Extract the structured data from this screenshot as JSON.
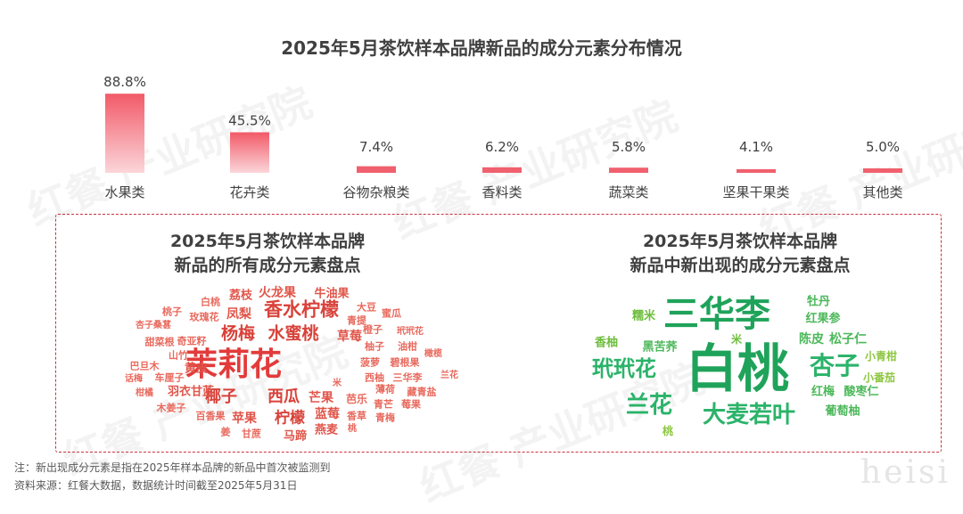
{
  "watermark": "红餐 产业研究院",
  "signature": "heisi",
  "title": "2025年5月茶饮样本品牌新品的成分元素分布情况",
  "chart_data": [
    {
      "type": "bar",
      "title": "2025年5月茶饮样本品牌新品的成分元素分布情况",
      "categories": [
        "水果类",
        "花卉类",
        "谷物杂粮类",
        "香料类",
        "蔬菜类",
        "坚果干果类",
        "其他类"
      ],
      "values": [
        88.8,
        45.5,
        7.4,
        6.2,
        5.8,
        4.1,
        5.0
      ],
      "value_labels": [
        "88.8%",
        "45.5%",
        "7.4%",
        "6.2%",
        "5.8%",
        "4.1%",
        "5.0%"
      ],
      "unit": "%",
      "ylim": [
        0,
        100
      ],
      "grid": false,
      "color": "#f0606e"
    }
  ],
  "left_panel": {
    "title_line1": "2025年5月茶饮样本品牌",
    "title_line2": "新品的所有成分元素盘点",
    "words": [
      {
        "text": "茉莉花",
        "size": 36,
        "color": "#e23b3b"
      },
      {
        "text": "香水柠檬",
        "size": 21,
        "color": "#d8423a"
      },
      {
        "text": "杨梅",
        "size": 19,
        "color": "#d8423a"
      },
      {
        "text": "水蜜桃",
        "size": 19,
        "color": "#d8423a"
      },
      {
        "text": "椰子",
        "size": 18,
        "color": "#d8423a"
      },
      {
        "text": "西瓜",
        "size": 18,
        "color": "#d8423a"
      },
      {
        "text": "柠檬",
        "size": 17,
        "color": "#d8423a"
      },
      {
        "text": "火龙果",
        "size": 14,
        "color": "#e0554a"
      },
      {
        "text": "牛油果",
        "size": 13,
        "color": "#e0554a"
      },
      {
        "text": "荔枝",
        "size": 13,
        "color": "#e0554a"
      },
      {
        "text": "凤梨",
        "size": 14,
        "color": "#e0554a"
      },
      {
        "text": "草莓",
        "size": 14,
        "color": "#e0554a"
      },
      {
        "text": "芒果",
        "size": 14,
        "color": "#e0554a"
      },
      {
        "text": "蓝莓",
        "size": 14,
        "color": "#e0554a"
      },
      {
        "text": "苹果",
        "size": 14,
        "color": "#e0554a"
      },
      {
        "text": "马蹄",
        "size": 13,
        "color": "#e0554a"
      },
      {
        "text": "燕麦",
        "size": 13,
        "color": "#e0554a"
      },
      {
        "text": "黄皮",
        "size": 13,
        "color": "#e0554a"
      },
      {
        "text": "羽衣甘蓝",
        "size": 13,
        "color": "#e0554a"
      },
      {
        "text": "白桃",
        "size": 11,
        "color": "#e86a5e"
      },
      {
        "text": "桃子",
        "size": 11,
        "color": "#e86a5e"
      },
      {
        "text": "玫瑰花",
        "size": 11,
        "color": "#e86a5e"
      },
      {
        "text": "杏子桑葚",
        "size": 10,
        "color": "#e86a5e"
      },
      {
        "text": "甜菜根",
        "size": 11,
        "color": "#e86a5e"
      },
      {
        "text": "奇亚籽",
        "size": 11,
        "color": "#e86a5e"
      },
      {
        "text": "山竹",
        "size": 11,
        "color": "#e86a5e"
      },
      {
        "text": "巴旦木",
        "size": 11,
        "color": "#e86a5e"
      },
      {
        "text": "话梅",
        "size": 10,
        "color": "#e86a5e"
      },
      {
        "text": "车厘子",
        "size": 11,
        "color": "#e86a5e"
      },
      {
        "text": "柑橘",
        "size": 10,
        "color": "#e86a5e"
      },
      {
        "text": "木姜子",
        "size": 11,
        "color": "#e86a5e"
      },
      {
        "text": "百香果",
        "size": 11,
        "color": "#e86a5e"
      },
      {
        "text": "姜",
        "size": 11,
        "color": "#e86a5e"
      },
      {
        "text": "甘蔗",
        "size": 11,
        "color": "#e86a5e"
      },
      {
        "text": "大豆",
        "size": 11,
        "color": "#e86a5e"
      },
      {
        "text": "青提",
        "size": 11,
        "color": "#e86a5e"
      },
      {
        "text": "蜜瓜",
        "size": 11,
        "color": "#e86a5e"
      },
      {
        "text": "橙子",
        "size": 11,
        "color": "#e86a5e"
      },
      {
        "text": "玳玳花",
        "size": 10,
        "color": "#e86a5e"
      },
      {
        "text": "柚子",
        "size": 11,
        "color": "#e86a5e"
      },
      {
        "text": "油柑",
        "size": 11,
        "color": "#e86a5e"
      },
      {
        "text": "菠萝",
        "size": 11,
        "color": "#e86a5e"
      },
      {
        "text": "碧根果",
        "size": 11,
        "color": "#e86a5e"
      },
      {
        "text": "橄榄",
        "size": 10,
        "color": "#e86a5e"
      },
      {
        "text": "西柚",
        "size": 11,
        "color": "#e86a5e"
      },
      {
        "text": "三华李",
        "size": 11,
        "color": "#e86a5e"
      },
      {
        "text": "兰花",
        "size": 10,
        "color": "#e86a5e"
      },
      {
        "text": "薄荷",
        "size": 11,
        "color": "#e86a5e"
      },
      {
        "text": "藏青盐",
        "size": 11,
        "color": "#e86a5e"
      },
      {
        "text": "米",
        "size": 10,
        "color": "#e86a5e"
      },
      {
        "text": "芭乐",
        "size": 12,
        "color": "#e86a5e"
      },
      {
        "text": "青芒",
        "size": 11,
        "color": "#e86a5e"
      },
      {
        "text": "莓果",
        "size": 11,
        "color": "#e86a5e"
      },
      {
        "text": "香草",
        "size": 11,
        "color": "#e86a5e"
      },
      {
        "text": "青梅",
        "size": 11,
        "color": "#e86a5e"
      },
      {
        "text": "桃",
        "size": 10,
        "color": "#e86a5e"
      }
    ]
  },
  "right_panel": {
    "title_line1": "2025年5月茶饮样本品牌",
    "title_line2": "新品中新出现的成分元素盘点",
    "words": [
      {
        "text": "白桃",
        "size": 58,
        "color": "#1fa35a"
      },
      {
        "text": "三华李",
        "size": 40,
        "color": "#1fa35a"
      },
      {
        "text": "玳玳花",
        "size": 24,
        "color": "#2bb36a"
      },
      {
        "text": "杏子",
        "size": 28,
        "color": "#2bb36a"
      },
      {
        "text": "兰花",
        "size": 26,
        "color": "#2bb36a"
      },
      {
        "text": "大麦若叶",
        "size": 26,
        "color": "#2bb36a"
      },
      {
        "text": "牡丹",
        "size": 13,
        "color": "#4cb85a"
      },
      {
        "text": "红果参",
        "size": 13,
        "color": "#4cb85a"
      },
      {
        "text": "糯米",
        "size": 13,
        "color": "#6dbd3c"
      },
      {
        "text": "香柚",
        "size": 13,
        "color": "#6dbd3c"
      },
      {
        "text": "黑苦荞",
        "size": 13,
        "color": "#4cb85a"
      },
      {
        "text": "米",
        "size": 12,
        "color": "#6dbd3c"
      },
      {
        "text": "陈皮",
        "size": 14,
        "color": "#4cb85a"
      },
      {
        "text": "松子仁",
        "size": 14,
        "color": "#4cb85a"
      },
      {
        "text": "小青柑",
        "size": 12,
        "color": "#8cc63f"
      },
      {
        "text": "小番茄",
        "size": 12,
        "color": "#8cc63f"
      },
      {
        "text": "红梅",
        "size": 13,
        "color": "#4cb85a"
      },
      {
        "text": "酸枣仁",
        "size": 13,
        "color": "#4cb85a"
      },
      {
        "text": "葡萄柚",
        "size": 13,
        "color": "#4cb85a"
      },
      {
        "text": "桃",
        "size": 12,
        "color": "#8cc63f"
      }
    ]
  },
  "footer": {
    "note": "注：新出现成分元素是指在2025年样本品牌的新品中首次被监测到",
    "source": "资料来源：红餐大数据，数据统计时间截至2025年5月31日"
  }
}
